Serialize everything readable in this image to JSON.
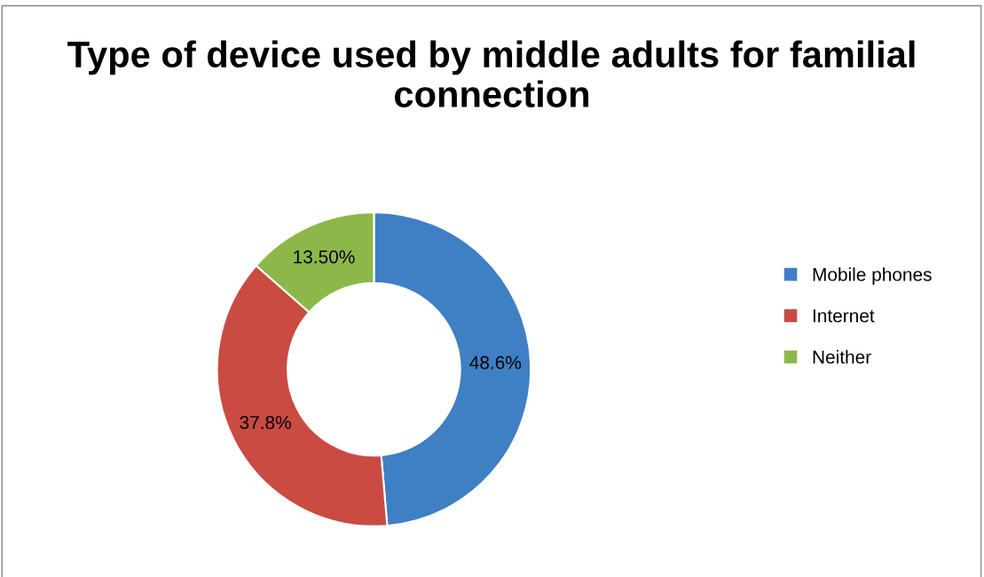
{
  "chart_data": {
    "type": "donut",
    "title": "Type of device used by middle adults for familial connection",
    "categories": [
      "Mobile phones",
      "Internet",
      "Neither"
    ],
    "values": [
      48.6,
      37.8,
      13.5
    ],
    "value_labels": [
      "48.6%",
      "37.8%",
      "13.50%"
    ],
    "colors": [
      "#3f7fc4",
      "#c94b42",
      "#8db849"
    ],
    "legend": "right"
  }
}
